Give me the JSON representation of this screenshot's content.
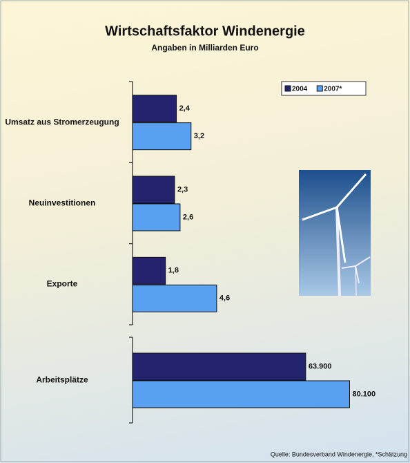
{
  "chart_data": [
    {
      "type": "hbar",
      "title": "Wirtschaftsfaktor Windenergie",
      "subtitle": "Angaben in Milliarden Euro",
      "categories": [
        "Umsatz aus Stromerzeugung",
        "Neuinvestitionen",
        "Exporte"
      ],
      "series": [
        {
          "name": "2004",
          "color": "#24246e",
          "values": [
            2.4,
            2.3,
            1.8
          ],
          "value_labels": [
            "2,4",
            "2,3",
            "1,8"
          ]
        },
        {
          "name": "2007*",
          "color": "#5aa0f0",
          "values": [
            3.2,
            2.6,
            4.6
          ],
          "value_labels": [
            "3,2",
            "2,6",
            "4,6"
          ]
        }
      ],
      "xlim": [
        0,
        12
      ],
      "legend": "top-right"
    },
    {
      "type": "hbar",
      "categories": [
        "Arbeitsplätze"
      ],
      "series": [
        {
          "name": "2004",
          "color": "#24246e",
          "values": [
            63900
          ],
          "value_labels": [
            "63.900"
          ]
        },
        {
          "name": "2007*",
          "color": "#5aa0f0",
          "values": [
            80100
          ],
          "value_labels": [
            "80.100"
          ]
        }
      ],
      "xlim": [
        0,
        81000
      ],
      "note": "Quelle: Bundesverband Windenergie, *Schätzung"
    }
  ]
}
